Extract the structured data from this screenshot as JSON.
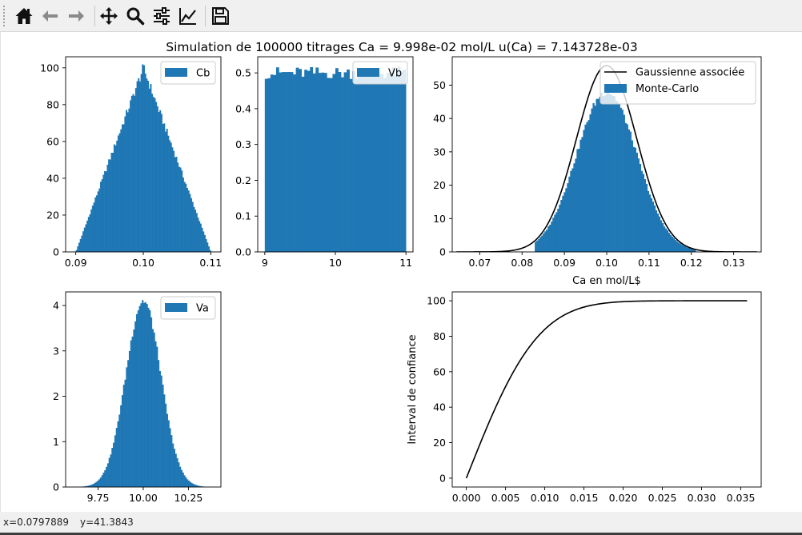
{
  "toolbar": {
    "buttons": [
      {
        "id": "home",
        "icon": "home-icon"
      },
      {
        "id": "back",
        "icon": "arrow-left-icon"
      },
      {
        "id": "forward",
        "icon": "arrow-right-icon"
      },
      {
        "id": "pan",
        "icon": "move-icon"
      },
      {
        "id": "zoom",
        "icon": "magnifier-icon"
      },
      {
        "id": "subplots",
        "icon": "sliders-icon"
      },
      {
        "id": "customize",
        "icon": "line-chart-icon"
      },
      {
        "id": "save",
        "icon": "floppy-disk-icon"
      }
    ]
  },
  "status": {
    "x_readout": "x=0.0797889",
    "y_readout": "y=41.3843"
  },
  "figure": {
    "suptitle": "Simulation de 100000 titrages Ca = 9.998e-02 mol/L u(Ca) = 7.143728e-03"
  },
  "colors": {
    "bar": "#1f77b4",
    "line": "#000000",
    "toolbar_bg": "#f0f0f0"
  },
  "chart_data": [
    {
      "type": "bar",
      "id": "cb",
      "legend": [
        "Cb"
      ],
      "legend_loc": "upper right",
      "xlim": [
        0.0885,
        0.1115
      ],
      "ylim": [
        0,
        106
      ],
      "xticks": [
        0.09,
        0.1,
        0.11
      ],
      "xtick_labels": [
        "0.09",
        "0.10",
        "0.11"
      ],
      "yticks": [
        0,
        20,
        40,
        60,
        80,
        100
      ],
      "ytick_labels": [
        "0",
        "20",
        "40",
        "60",
        "80",
        "100"
      ],
      "shape": "triangular",
      "bin_range": [
        0.09,
        0.11
      ],
      "bins": 100,
      "peak": 100,
      "xlabel": "",
      "ylabel": ""
    },
    {
      "type": "bar",
      "id": "vb",
      "legend": [
        "Vb"
      ],
      "legend_loc": "upper right",
      "xlim": [
        8.9,
        11.1
      ],
      "ylim": [
        0,
        0.545
      ],
      "xticks": [
        9,
        10,
        11
      ],
      "xtick_labels": [
        "9",
        "10",
        "11"
      ],
      "yticks": [
        0,
        0.1,
        0.2,
        0.3,
        0.4,
        0.5
      ],
      "ytick_labels": [
        "0.0",
        "0.1",
        "0.2",
        "0.3",
        "0.4",
        "0.5"
      ],
      "shape": "uniform",
      "bin_range": [
        9,
        11
      ],
      "bins": 50,
      "level": 0.5,
      "xlabel": "",
      "ylabel": ""
    },
    {
      "type": "bar",
      "id": "ca",
      "legend": [
        "Gaussienne associée",
        "Monte-Carlo"
      ],
      "legend_loc": "upper right",
      "xlim": [
        0.0635,
        0.1365
      ],
      "ylim": [
        0,
        58.5
      ],
      "xticks": [
        0.07,
        0.08,
        0.09,
        0.1,
        0.11,
        0.12,
        0.13
      ],
      "xtick_labels": [
        "0.07",
        "0.08",
        "0.09",
        "0.10",
        "0.11",
        "0.12",
        "0.13"
      ],
      "yticks": [
        0,
        10,
        20,
        30,
        40,
        50
      ],
      "ytick_labels": [
        "0",
        "10",
        "20",
        "30",
        "40",
        "50"
      ],
      "xlabel": "Ca en mol/L$",
      "ylabel": "",
      "shape": "gaussian",
      "hist_range": [
        0.083,
        0.121
      ],
      "bins": 100,
      "mean": 0.09998,
      "sigma": 0.007143728,
      "hist_peak": 48,
      "curve_range": [
        0.0645,
        0.1355
      ]
    },
    {
      "type": "bar",
      "id": "va",
      "legend": [
        "Va"
      ],
      "legend_loc": "upper right",
      "xlim": [
        9.57,
        10.43
      ],
      "ylim": [
        0,
        4.3
      ],
      "xticks": [
        9.75,
        10.0,
        10.25
      ],
      "xtick_labels": [
        "9.75",
        "10.00",
        "10.25"
      ],
      "yticks": [
        0,
        1,
        2,
        3,
        4
      ],
      "ytick_labels": [
        "0",
        "1",
        "2",
        "3",
        "4"
      ],
      "shape": "gaussian",
      "hist_range": [
        9.6,
        10.4
      ],
      "bins": 100,
      "mean": 10.0,
      "sigma": 0.097,
      "hist_peak": 4.1,
      "xlabel": "",
      "ylabel": ""
    },
    {
      "type": "line",
      "id": "ci",
      "legend": [],
      "xlim": [
        -0.0018,
        0.0376
      ],
      "ylim": [
        -5,
        105
      ],
      "xticks": [
        0,
        0.005,
        0.01,
        0.015,
        0.02,
        0.025,
        0.03,
        0.035
      ],
      "xtick_labels": [
        "0.000",
        "0.005",
        "0.010",
        "0.015",
        "0.020",
        "0.025",
        "0.030",
        "0.035"
      ],
      "yticks": [
        0,
        20,
        40,
        60,
        80,
        100
      ],
      "ytick_labels": [
        "0",
        "20",
        "40",
        "60",
        "80",
        "100"
      ],
      "ylabel": "Interval de confiance",
      "xlabel": "",
      "x_range": [
        0,
        0.0358
      ],
      "sigma": 0.007143728,
      "percent_max": 100
    }
  ]
}
